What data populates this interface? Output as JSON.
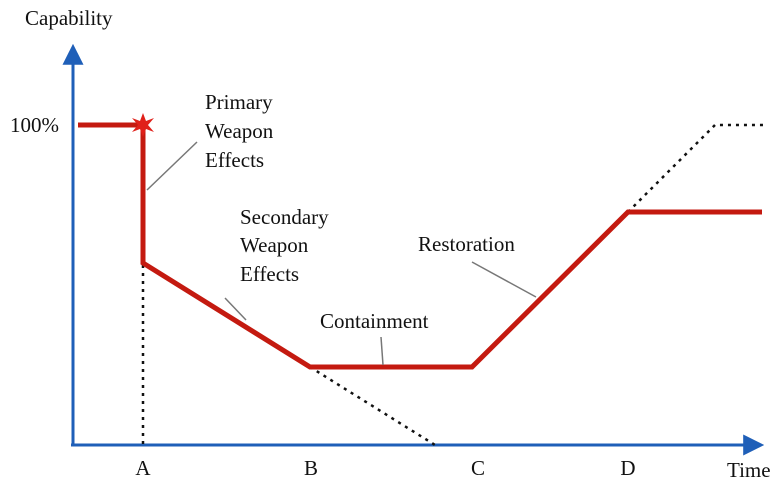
{
  "y_axis_label": "Capability",
  "y_tick": "100%",
  "x_axis_label": "Time",
  "x_ticks": [
    "A",
    "B",
    "C",
    "D"
  ],
  "annotations": {
    "primary": [
      "Primary",
      "Weapon",
      "Effects"
    ],
    "secondary": [
      "Secondary",
      "Weapon",
      "Effects"
    ],
    "containment": "Containment",
    "restoration": "Restoration"
  }
}
